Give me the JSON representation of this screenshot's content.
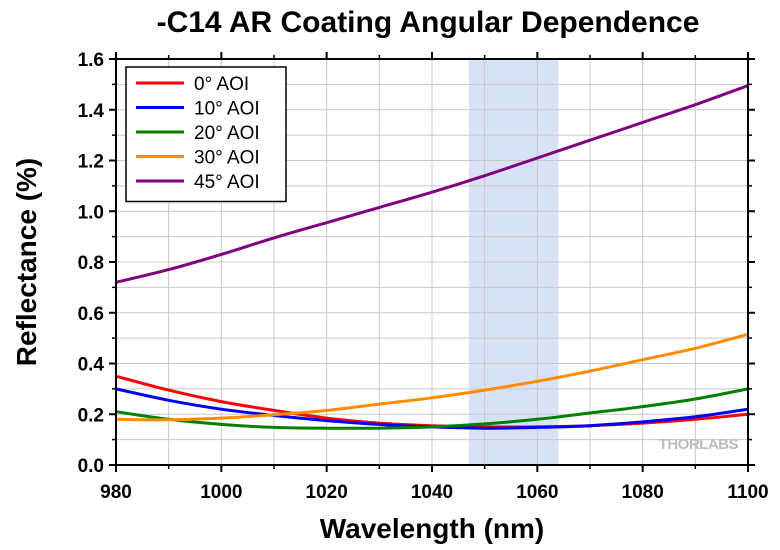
{
  "watermark": "THORLABS",
  "colors": {
    "band": "#d7e2f5",
    "grid": "#c8c8c8",
    "axis": "#000000"
  },
  "chart_data": {
    "type": "line",
    "title": "-C14 AR Coating Angular Dependence",
    "xlabel": "Wavelength (nm)",
    "ylabel": "Reflectance (%)",
    "xlim": [
      980,
      1100
    ],
    "ylim": [
      0.0,
      1.6
    ],
    "xticks": [
      980,
      1000,
      1020,
      1040,
      1060,
      1080,
      1100
    ],
    "yticks": [
      "0.0",
      "0.2",
      "0.4",
      "0.6",
      "0.8",
      "1.0",
      "1.2",
      "1.4",
      "1.6"
    ],
    "grid": true,
    "legend_position": "top-left",
    "highlight_band": [
      1047,
      1064
    ],
    "x": [
      980,
      990,
      1000,
      1010,
      1020,
      1030,
      1040,
      1050,
      1060,
      1070,
      1080,
      1090,
      1100
    ],
    "series": [
      {
        "name": "0° AOI",
        "color": "#ff0000",
        "values": [
          0.35,
          0.295,
          0.25,
          0.215,
          0.185,
          0.165,
          0.155,
          0.15,
          0.15,
          0.155,
          0.165,
          0.18,
          0.2
        ]
      },
      {
        "name": "10° AOI",
        "color": "#0000ff",
        "values": [
          0.3,
          0.255,
          0.22,
          0.195,
          0.175,
          0.16,
          0.15,
          0.145,
          0.148,
          0.155,
          0.17,
          0.19,
          0.22
        ]
      },
      {
        "name": "20° AOI",
        "color": "#008000",
        "values": [
          0.21,
          0.18,
          0.16,
          0.148,
          0.145,
          0.145,
          0.15,
          0.162,
          0.18,
          0.205,
          0.23,
          0.26,
          0.3
        ]
      },
      {
        "name": "30° AOI",
        "color": "#ff8c00",
        "values": [
          0.18,
          0.178,
          0.185,
          0.198,
          0.215,
          0.24,
          0.265,
          0.295,
          0.33,
          0.37,
          0.415,
          0.46,
          0.515
        ]
      },
      {
        "name": "45° AOI",
        "color": "#800080",
        "values": [
          0.72,
          0.77,
          0.83,
          0.895,
          0.955,
          1.015,
          1.075,
          1.14,
          1.21,
          1.28,
          1.35,
          1.42,
          1.495
        ]
      }
    ]
  }
}
